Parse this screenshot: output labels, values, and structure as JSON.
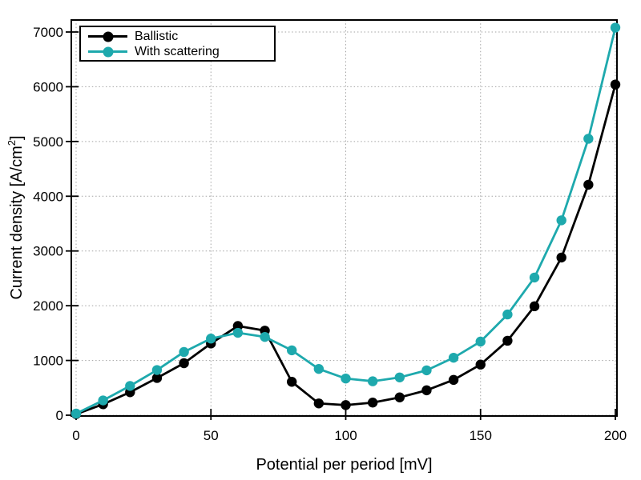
{
  "chart_data": {
    "type": "line",
    "title": "",
    "x": [
      0,
      10,
      20,
      30,
      40,
      50,
      60,
      70,
      80,
      90,
      100,
      110,
      120,
      130,
      140,
      150,
      160,
      170,
      180,
      190,
      200
    ],
    "series": [
      {
        "name": "Ballistic",
        "color": "#000000",
        "marker": "circle",
        "values": [
          20,
          200,
          420,
          680,
          950,
          1310,
          1630,
          1545,
          610,
          215,
          185,
          230,
          325,
          455,
          645,
          925,
          1360,
          1990,
          2880,
          4210,
          6040
        ]
      },
      {
        "name": "With scattering",
        "color": "#1EA9AD",
        "marker": "circle",
        "values": [
          30,
          270,
          535,
          825,
          1155,
          1400,
          1505,
          1430,
          1185,
          845,
          670,
          620,
          690,
          820,
          1050,
          1345,
          1840,
          2515,
          3560,
          5050,
          7080
        ]
      }
    ],
    "xlabel": "Potential per period [mV]",
    "ylabel": "Current density [A/cm^2]",
    "xticks": [
      0,
      50,
      100,
      150,
      200
    ],
    "yticks": [
      0,
      1000,
      2000,
      3000,
      4000,
      5000,
      6000,
      7000
    ],
    "xlim": [
      -2,
      201
    ],
    "ylim": [
      -30,
      7230
    ],
    "grid": true,
    "grid_style": "dotted",
    "legend_position": "top-left"
  },
  "axes": {
    "xlabel": "Potential per period [mV]",
    "ylabel_pre": "Current density [A/cm",
    "ylabel_sup": "2",
    "ylabel_post": "]"
  },
  "legend": {
    "items": [
      {
        "label": "Ballistic"
      },
      {
        "label": "With scattering"
      }
    ]
  },
  "colors": {
    "background": "#ffffff",
    "grid": "#a3a3a3",
    "axis": "#000000",
    "tick_label": "#000000"
  }
}
